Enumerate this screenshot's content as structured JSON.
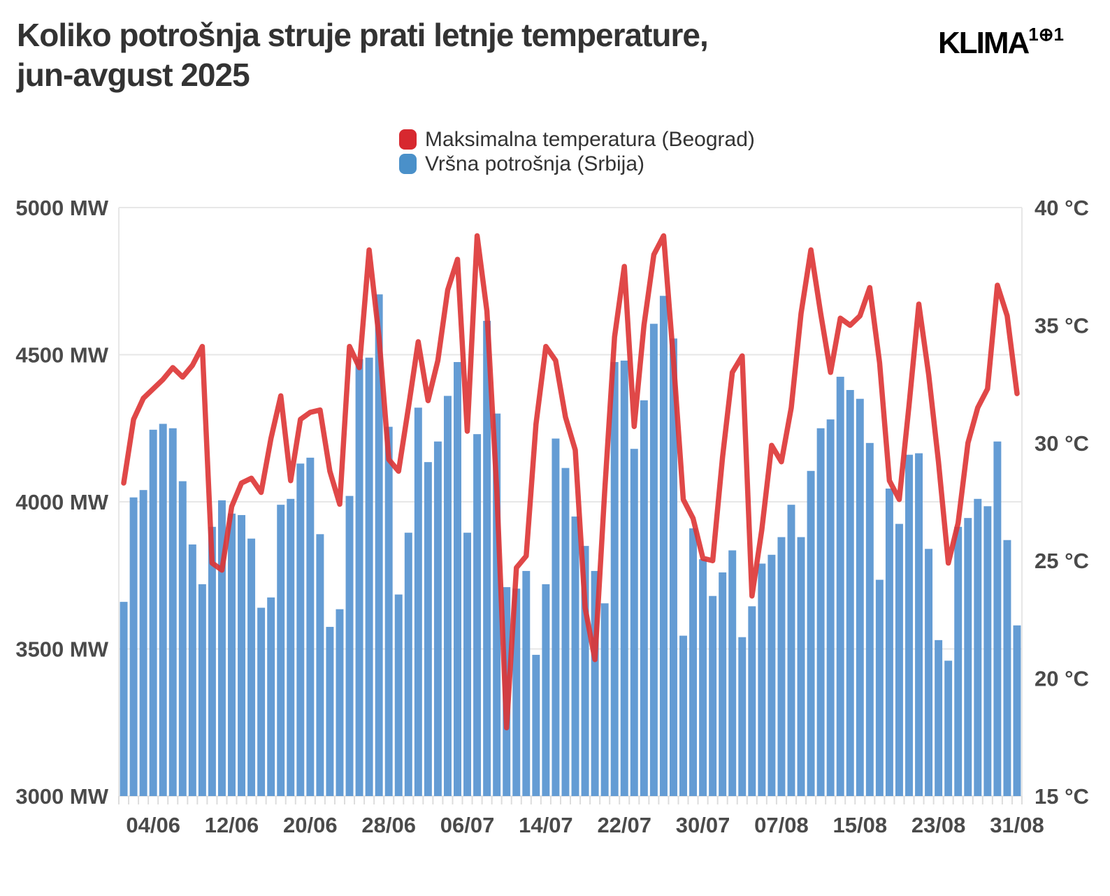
{
  "title": {
    "line1": "Koliko potrošnja struje prati letnje temperature,",
    "line2": "jun-avgust 2025"
  },
  "logo": {
    "text": "KLIMA",
    "sup": "1⊕1"
  },
  "legend": {
    "items": [
      {
        "label": "Maksimalna temperatura (Beograd)",
        "color": "#d7282f"
      },
      {
        "label": "Vršna potrošnja (Srbija)",
        "color": "#4a90c9"
      }
    ]
  },
  "axes": {
    "left_ticks": [
      "5000 MW",
      "4500 MW",
      "4000 MW",
      "3500 MW",
      "3000 MW"
    ],
    "right_ticks": [
      "40 °C",
      "35 °C",
      "30 °C",
      "25 °C",
      "20 °C",
      "15 °C"
    ],
    "x_tick_labels": [
      "04/06",
      "12/06",
      "20/06",
      "28/06",
      "06/07",
      "14/07",
      "22/07",
      "30/07",
      "07/08",
      "15/08",
      "23/08",
      "31/08"
    ],
    "x_tick_day_numbers": [
      4,
      12,
      20,
      28,
      36,
      44,
      52,
      60,
      68,
      76,
      84,
      92
    ]
  },
  "chart_data": {
    "type": "bar",
    "subtype": "bar+line dual axis, daily values 01/06-31/08 (92 days)",
    "n_days": 92,
    "left_axis": {
      "label": "MW",
      "range": [
        3000,
        5000
      ],
      "gridline_step": 500
    },
    "right_axis": {
      "label": "°C",
      "range": [
        15,
        40
      ],
      "tick_step": 5
    },
    "legend_position": "top-center",
    "grid": "horizontal only",
    "series": [
      {
        "name": "Vršna potrošnja (Srbija)",
        "type": "bar",
        "axis": "left",
        "unit": "MW",
        "color": "#649cd4",
        "values": [
          3660,
          4015,
          4040,
          4245,
          4265,
          4250,
          4070,
          3855,
          3720,
          3915,
          4005,
          3960,
          3955,
          3875,
          3640,
          3675,
          3990,
          4010,
          4130,
          4150,
          3890,
          3575,
          3635,
          4020,
          4485,
          4490,
          4705,
          4255,
          3685,
          3895,
          4320,
          4135,
          4205,
          4360,
          4475,
          3895,
          4230,
          4615,
          4300,
          3710,
          3705,
          3765,
          3480,
          3720,
          4215,
          4115,
          3950,
          3850,
          3765,
          3655,
          4475,
          4480,
          4180,
          4345,
          4605,
          4700,
          4555,
          3545,
          3910,
          3805,
          3680,
          3760,
          3835,
          3540,
          3645,
          3790,
          3820,
          3880,
          3990,
          3880,
          4105,
          4250,
          4280,
          4425,
          4380,
          4350,
          4200,
          3735,
          4045,
          3925,
          4160,
          4165,
          3840,
          3530,
          3460,
          3915,
          3945,
          4010,
          3985,
          4205,
          3870,
          3580
        ]
      },
      {
        "name": "Maksimalna temperatura (Beograd)",
        "type": "line",
        "axis": "right",
        "unit": "°C",
        "color": "#dd3434",
        "values": [
          28.3,
          31.0,
          31.9,
          32.3,
          32.7,
          33.2,
          32.8,
          33.3,
          34.1,
          24.9,
          24.6,
          27.3,
          28.3,
          28.5,
          27.9,
          30.2,
          32.0,
          28.4,
          31.0,
          31.3,
          31.4,
          28.8,
          27.4,
          34.1,
          33.2,
          38.2,
          34.5,
          29.3,
          28.8,
          31.5,
          34.3,
          31.8,
          33.5,
          36.5,
          37.8,
          30.5,
          38.8,
          35.6,
          28.0,
          17.9,
          24.7,
          25.2,
          30.8,
          34.1,
          33.5,
          31.1,
          29.7,
          23.0,
          20.8,
          28.0,
          34.5,
          37.5,
          30.7,
          35.0,
          38.0,
          38.8,
          33.5,
          27.6,
          26.8,
          25.1,
          25.0,
          29.4,
          33.0,
          33.7,
          23.5,
          26.3,
          29.9,
          29.2,
          31.5,
          35.5,
          38.2,
          35.5,
          33.0,
          35.3,
          35.0,
          35.4,
          36.6,
          33.4,
          28.4,
          27.6,
          31.6,
          35.9,
          32.9,
          29.2,
          24.9,
          26.6,
          30.0,
          31.5,
          32.3,
          36.7,
          35.4,
          32.1
        ]
      }
    ],
    "x_tick_labels": [
      "04/06",
      "12/06",
      "20/06",
      "28/06",
      "06/07",
      "14/07",
      "22/07",
      "30/07",
      "07/08",
      "15/08",
      "23/08",
      "31/08"
    ],
    "title": "Koliko potrošnja struje prati letnje temperature, jun-avgust 2025"
  },
  "colors": {
    "background": "#ffffff",
    "grid": "#e7e7e7",
    "axis_text": "#4a4a4a",
    "title_text": "#333333",
    "bar": "#649cd4",
    "line": "#dd3434"
  }
}
